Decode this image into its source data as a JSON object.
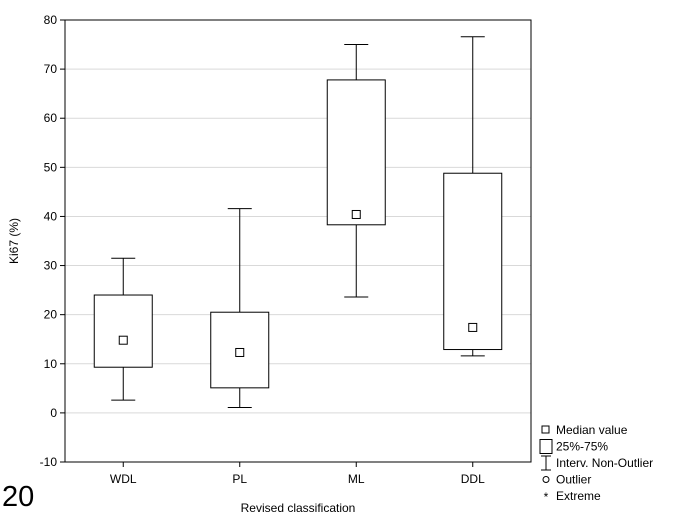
{
  "panel_number": "20",
  "chart_data": {
    "type": "box",
    "title": "",
    "xlabel": "Revised classification",
    "ylabel": "Ki67 (%)",
    "ylim": [
      -10,
      80
    ],
    "yticks": [
      -10,
      0,
      10,
      20,
      30,
      40,
      50,
      60,
      70,
      80
    ],
    "grid": true,
    "categories": [
      "WDL",
      "PL",
      "ML",
      "DDL"
    ],
    "boxes": [
      {
        "category": "WDL",
        "median": 14.8,
        "q1": 9.3,
        "q3": 24.0,
        "whisker_low": 2.6,
        "whisker_high": 31.5
      },
      {
        "category": "PL",
        "median": 12.3,
        "q1": 5.1,
        "q3": 20.5,
        "whisker_low": 1.1,
        "whisker_high": 41.6
      },
      {
        "category": "ML",
        "median": 40.4,
        "q1": 38.3,
        "q3": 67.8,
        "whisker_low": 23.6,
        "whisker_high": 75.0
      },
      {
        "category": "DDL",
        "median": 17.4,
        "q1": 12.9,
        "q3": 48.8,
        "whisker_low": 11.6,
        "whisker_high": 76.6
      }
    ],
    "legend": {
      "position": "bottom-right",
      "items": [
        {
          "symbol": "median-square",
          "label": "Median value"
        },
        {
          "symbol": "box",
          "label": "25%-75%"
        },
        {
          "symbol": "whisker",
          "label": "Interv. Non-Outlier"
        },
        {
          "symbol": "outlier-circle",
          "label": "Outlier"
        },
        {
          "symbol": "extreme-star",
          "label": "Extreme"
        }
      ]
    }
  }
}
